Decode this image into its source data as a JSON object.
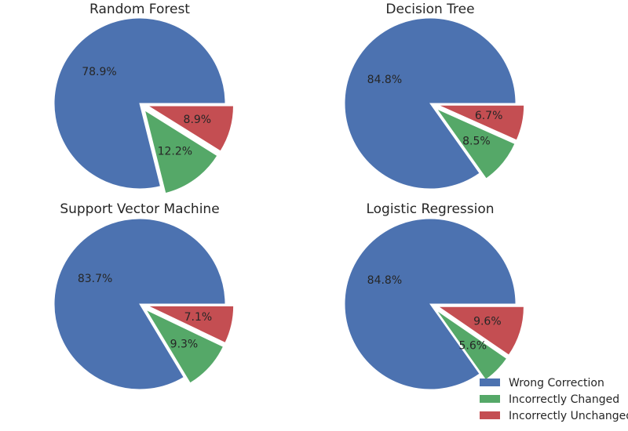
{
  "chart_data": [
    {
      "type": "pie",
      "title": "Random Forest",
      "labels": [
        "Wrong Correction",
        "Incorrectly Changed",
        "Incorrectly Unchanged"
      ],
      "values": [
        78.9,
        12.2,
        8.9
      ],
      "value_labels": [
        "78.9%",
        "12.2%",
        "8.9%"
      ]
    },
    {
      "type": "pie",
      "title": "Decision Tree",
      "labels": [
        "Wrong Correction",
        "Incorrectly Changed",
        "Incorrectly Unchanged"
      ],
      "values": [
        84.8,
        8.5,
        6.7
      ],
      "value_labels": [
        "84.8%",
        "8.5%",
        "6.7%"
      ]
    },
    {
      "type": "pie",
      "title": "Support Vector Machine",
      "labels": [
        "Wrong Correction",
        "Incorrectly Changed",
        "Incorrectly Unchanged"
      ],
      "values": [
        83.7,
        9.3,
        7.1
      ],
      "value_labels": [
        "83.7%",
        "9.3%",
        "7.1%"
      ]
    },
    {
      "type": "pie",
      "title": "Logistic Regression",
      "labels": [
        "Wrong Correction",
        "Incorrectly Changed",
        "Incorrectly Unchanged"
      ],
      "values": [
        84.8,
        5.6,
        9.6
      ],
      "value_labels": [
        "84.8%",
        "5.6%",
        "9.6%"
      ]
    }
  ],
  "legend": {
    "placement": "bottom-right",
    "items": [
      {
        "label": "Wrong Correction",
        "color": "#4C72B0"
      },
      {
        "label": "Incorrectly Changed",
        "color": "#55A868"
      },
      {
        "label": "Incorrectly Unchanged",
        "color": "#C44E52"
      }
    ]
  },
  "colors": [
    "#4C72B0",
    "#55A868",
    "#C44E52"
  ],
  "explode": [
    0,
    0.1,
    0.1
  ]
}
